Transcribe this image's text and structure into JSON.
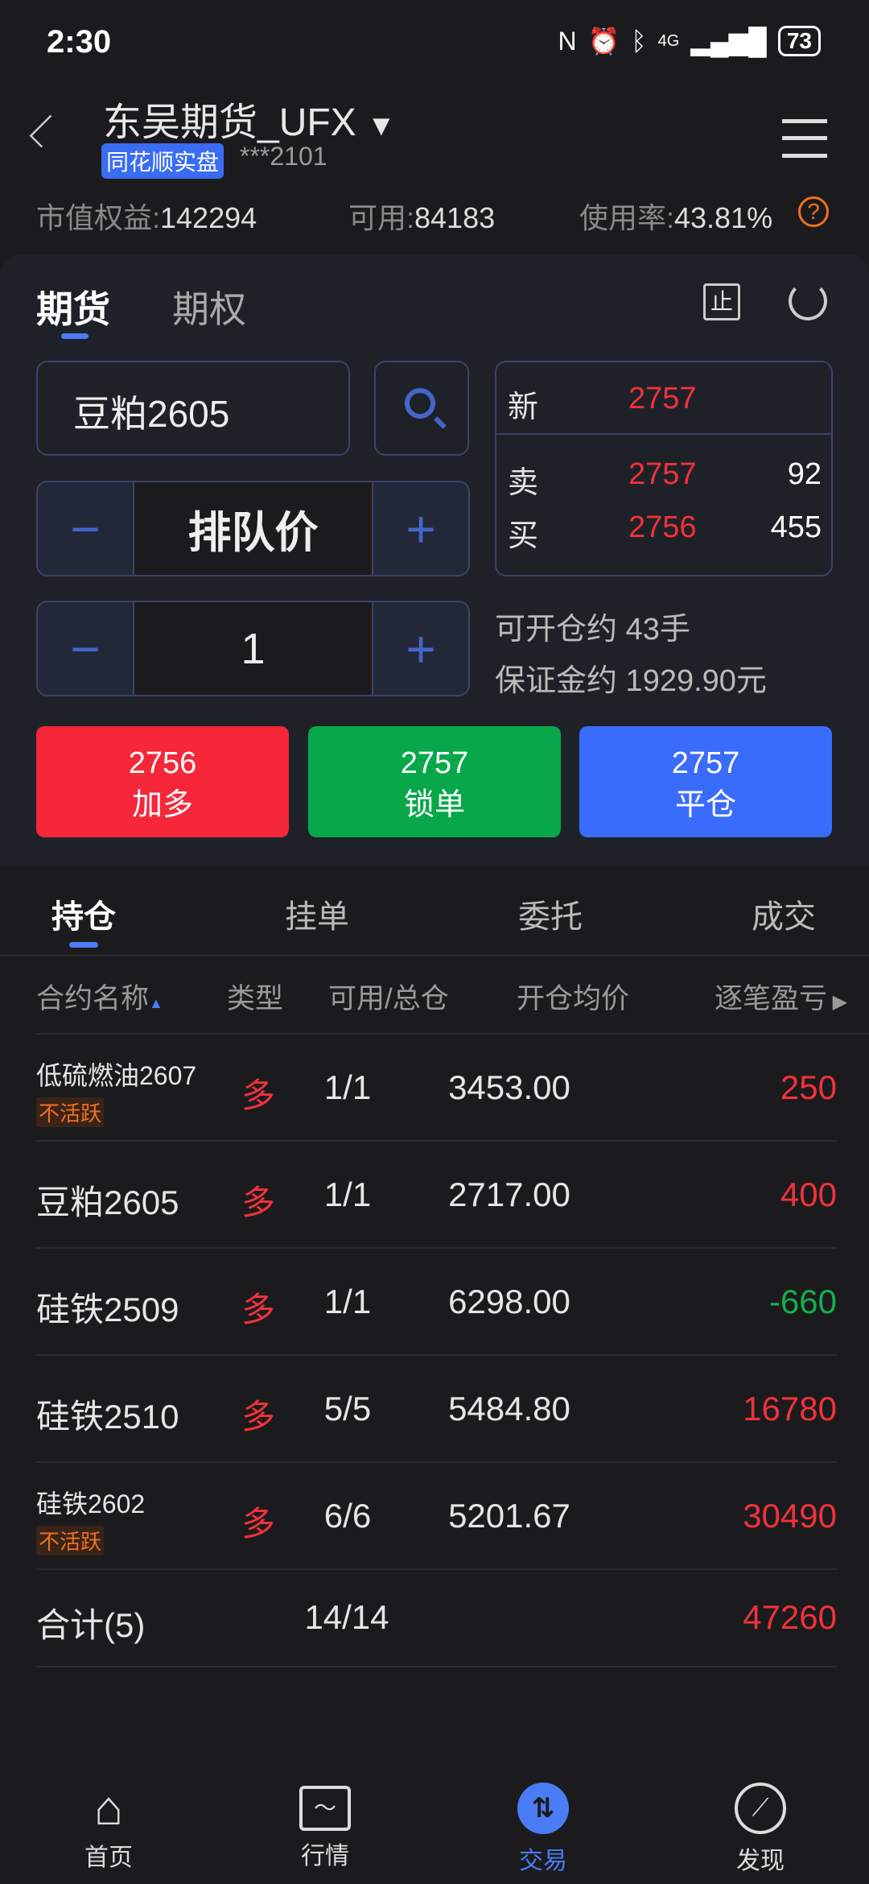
{
  "status": {
    "time": "2:30",
    "battery": "73",
    "net": "4G"
  },
  "header": {
    "title": "东吴期货_UFX",
    "badge": "同花顺实盘",
    "account": "***2101"
  },
  "stats": {
    "equity_label": "市值权益:",
    "equity": "142294",
    "avail_label": "可用:",
    "avail": "84183",
    "usage_label": "使用率:",
    "usage": "43.81%"
  },
  "tabs": [
    "期货",
    "期权"
  ],
  "order": {
    "contract": "豆粕2605",
    "price_mode": "排队价",
    "qty": "1",
    "can_open": "可开仓约 43手",
    "margin": "保证金约 1929.90元"
  },
  "quote": {
    "last_label": "新",
    "last": "2757",
    "ask_label": "卖",
    "ask": "2757",
    "ask_vol": "92",
    "bid_label": "买",
    "bid": "2756",
    "bid_vol": "455"
  },
  "actions": [
    {
      "price": "2756",
      "label": "加多",
      "color": "#f52738"
    },
    {
      "price": "2757",
      "label": "锁单",
      "color": "#08a84a"
    },
    {
      "price": "2757",
      "label": "平仓",
      "color": "#3a6cfc"
    }
  ],
  "pos_tabs": [
    "持仓",
    "挂单",
    "委托",
    "成交"
  ],
  "columns": [
    "合约名称",
    "类型",
    "可用/总仓",
    "开仓均价",
    "逐笔盈亏"
  ],
  "rows": [
    {
      "name": "低硫燃油2607",
      "tag": "不活跃",
      "type": "多",
      "qty": "1/1",
      "price": "3453.00",
      "pnl": "250",
      "neg": false
    },
    {
      "name": "豆粕2605",
      "tag": "",
      "type": "多",
      "qty": "1/1",
      "price": "2717.00",
      "pnl": "400",
      "neg": false
    },
    {
      "name": "硅铁2509",
      "tag": "",
      "type": "多",
      "qty": "1/1",
      "price": "6298.00",
      "pnl": "-660",
      "neg": true
    },
    {
      "name": "硅铁2510",
      "tag": "",
      "type": "多",
      "qty": "5/5",
      "price": "5484.80",
      "pnl": "16780",
      "neg": false
    },
    {
      "name": "硅铁2602",
      "tag": "不活跃",
      "type": "多",
      "qty": "6/6",
      "price": "5201.67",
      "pnl": "30490",
      "neg": false
    }
  ],
  "total": {
    "label": "合计(5)",
    "qty": "14/14",
    "pnl": "47260"
  },
  "nav": [
    "首页",
    "行情",
    "交易",
    "发现"
  ],
  "accent": "#4a7cf6"
}
